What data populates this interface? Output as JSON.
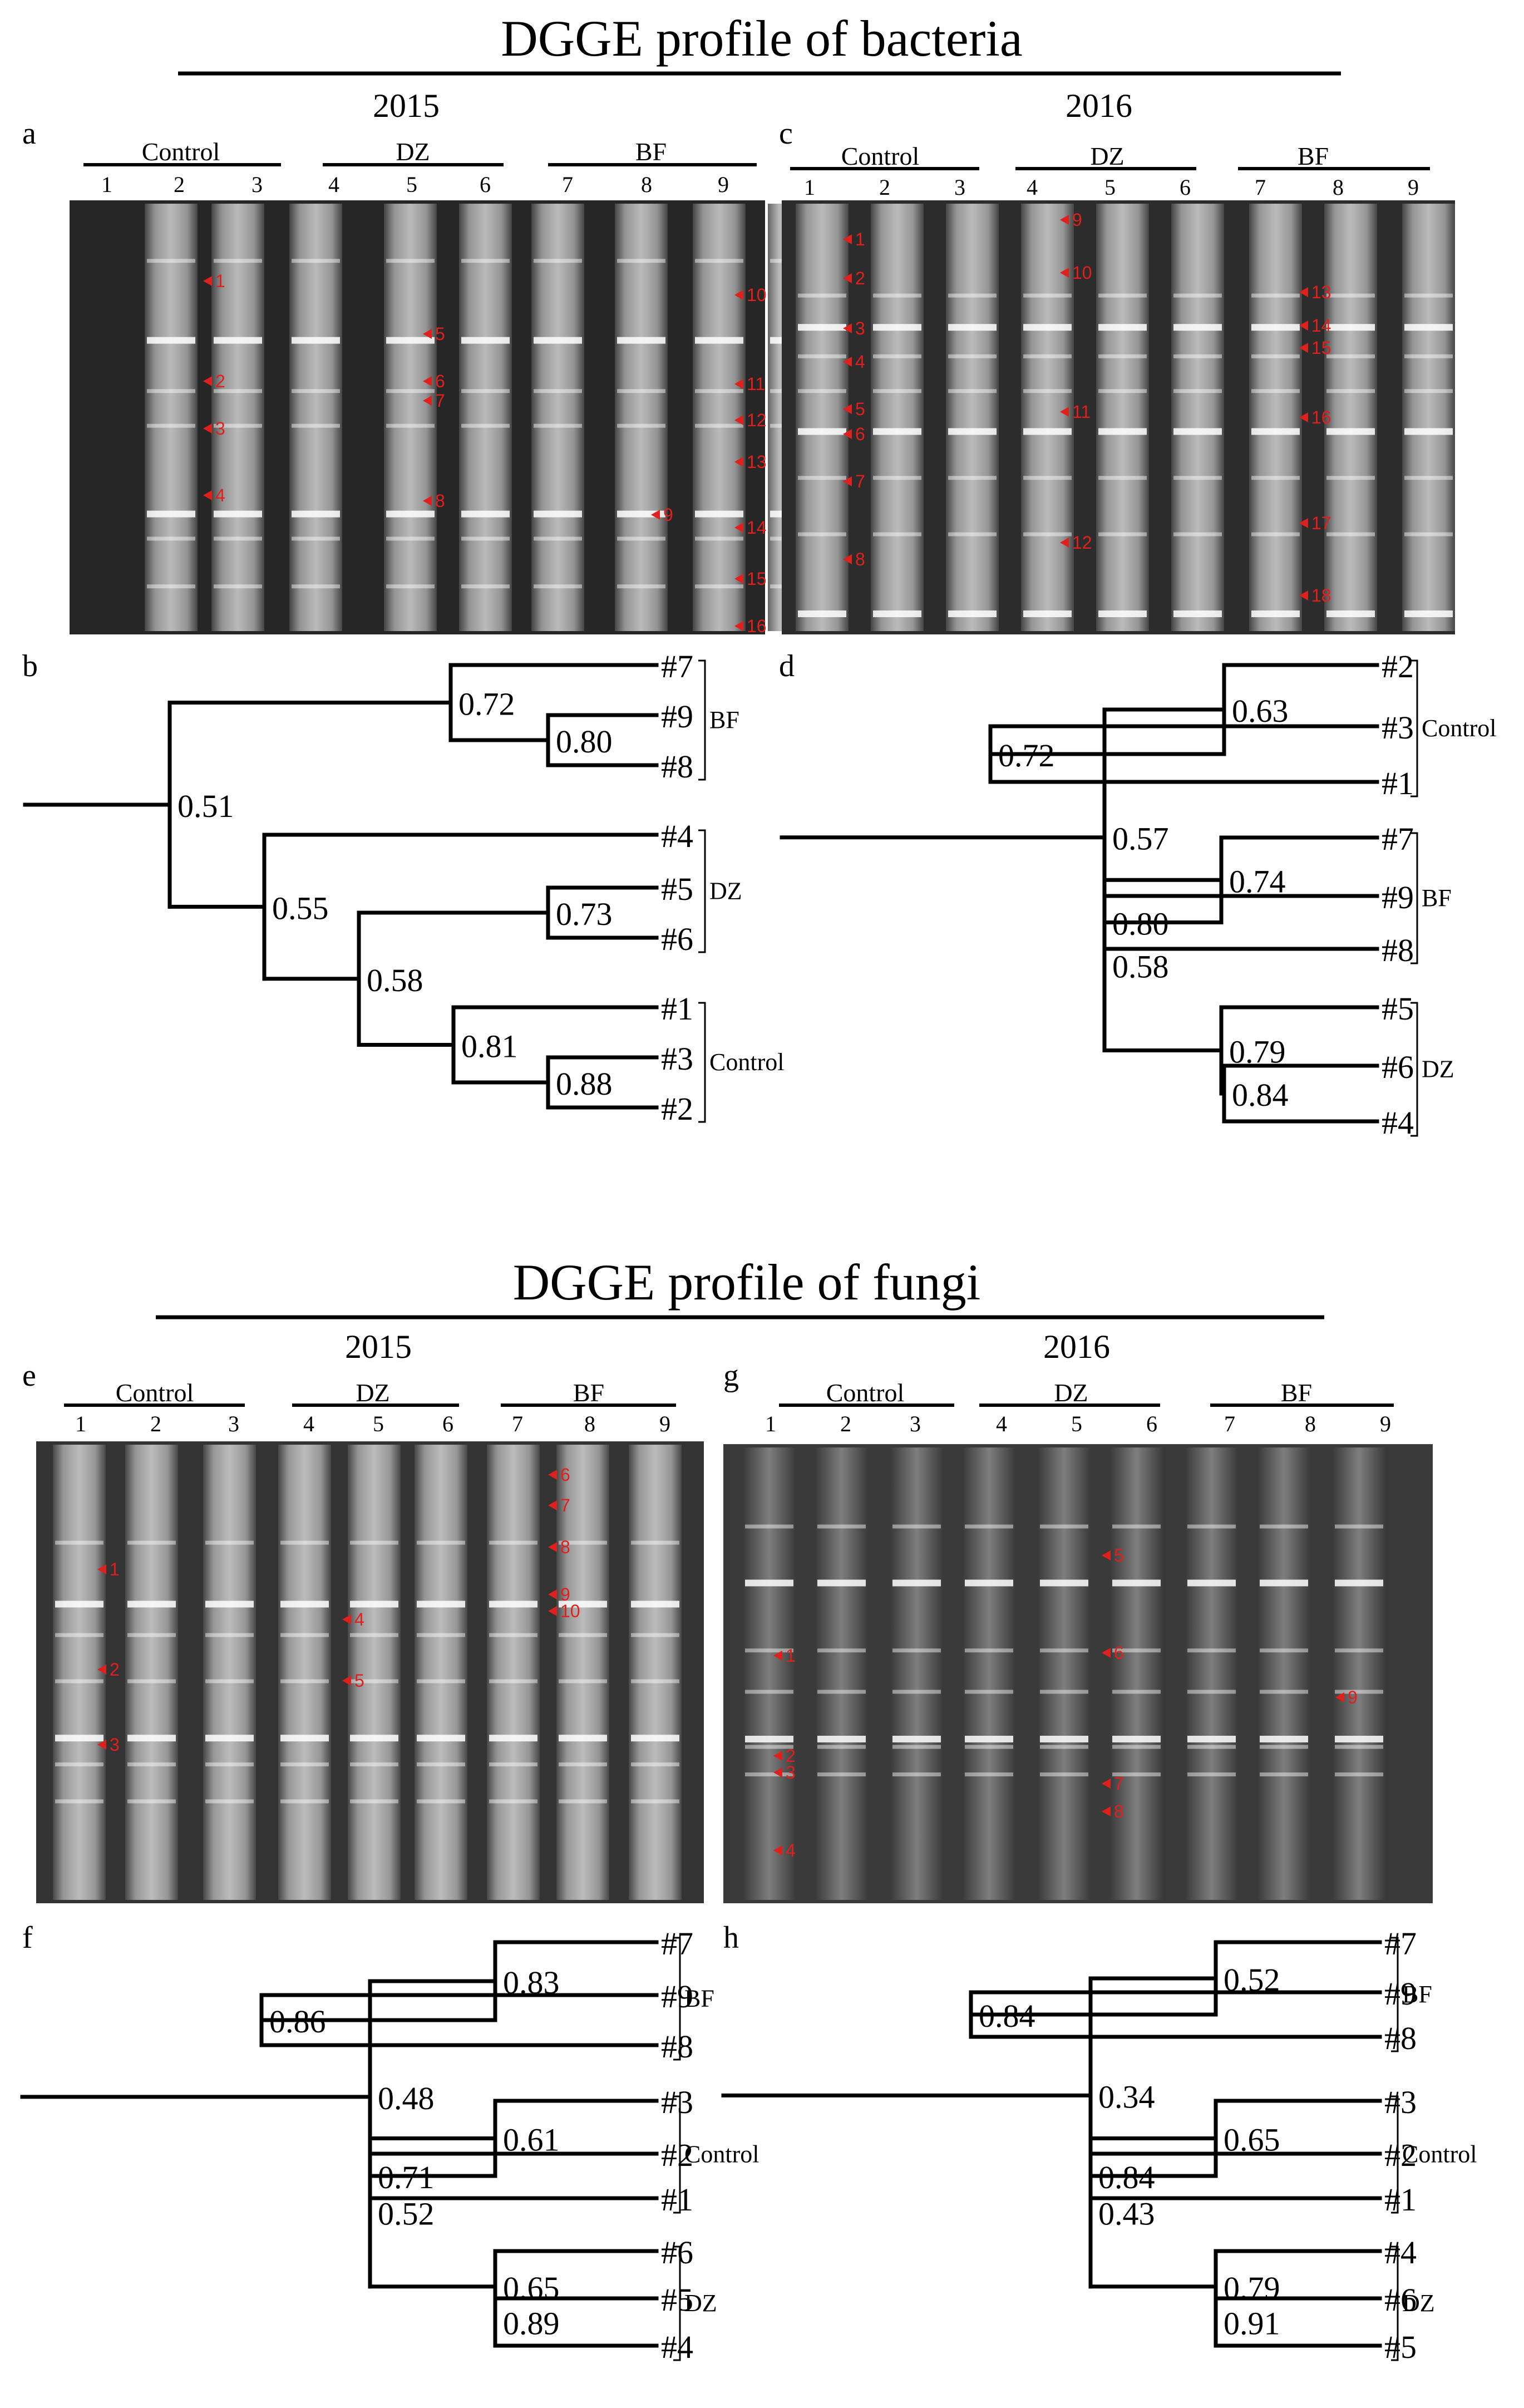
{
  "bacteria": {
    "title": "DGGE profile of bacteria",
    "panels": [
      {
        "letter": "a",
        "year": "2015",
        "groups": [
          {
            "name": "Control",
            "lanes": [
              "1",
              "2",
              "3"
            ]
          },
          {
            "name": "DZ",
            "lanes": [
              "4",
              "5",
              "6"
            ]
          },
          {
            "name": "BF",
            "lanes": [
              "7",
              "8",
              "9"
            ]
          }
        ],
        "bands": [
          "1",
          "2",
          "3",
          "4",
          "5",
          "6",
          "7",
          "8",
          "9",
          "10",
          "11",
          "12",
          "13",
          "14",
          "15",
          "16"
        ]
      },
      {
        "letter": "c",
        "year": "2016",
        "groups": [
          {
            "name": "Control",
            "lanes": [
              "1",
              "2",
              "3"
            ]
          },
          {
            "name": "DZ",
            "lanes": [
              "4",
              "5",
              "6"
            ]
          },
          {
            "name": "BF",
            "lanes": [
              "7",
              "8",
              "9"
            ]
          }
        ],
        "bands": [
          "1",
          "2",
          "3",
          "4",
          "5",
          "6",
          "7",
          "8",
          "9",
          "10",
          "11",
          "12",
          "13",
          "14",
          "15",
          "16",
          "17",
          "18"
        ]
      }
    ],
    "dendrograms": [
      {
        "letter": "b",
        "order": [
          "#7",
          "#9",
          "#8",
          "#4",
          "#5",
          "#6",
          "#1",
          "#3",
          "#2"
        ],
        "groups": [
          "BF",
          "DZ",
          "Control"
        ],
        "similarities": [
          "0.51",
          "0.72",
          "0.80",
          "0.55",
          "0.58",
          "0.73",
          "0.81",
          "0.88"
        ]
      },
      {
        "letter": "d",
        "order": [
          "#2",
          "#3",
          "#1",
          "#7",
          "#9",
          "#8",
          "#5",
          "#6",
          "#4"
        ],
        "groups": [
          "Control",
          "BF",
          "DZ"
        ],
        "similarities": [
          "0.57",
          "0.63",
          "0.72",
          "0.58",
          "0.74",
          "0.80",
          "0.79",
          "0.84"
        ]
      }
    ]
  },
  "fungi": {
    "title": "DGGE profile of fungi",
    "panels": [
      {
        "letter": "e",
        "year": "2015",
        "groups": [
          {
            "name": "Control",
            "lanes": [
              "1",
              "2",
              "3"
            ]
          },
          {
            "name": "DZ",
            "lanes": [
              "4",
              "5",
              "6"
            ]
          },
          {
            "name": "BF",
            "lanes": [
              "7",
              "8",
              "9"
            ]
          }
        ],
        "bands": [
          "1",
          "2",
          "3",
          "4",
          "5",
          "6",
          "7",
          "8",
          "9",
          "10"
        ]
      },
      {
        "letter": "g",
        "year": "2016",
        "groups": [
          {
            "name": "Control",
            "lanes": [
              "1",
              "2",
              "3"
            ]
          },
          {
            "name": "DZ",
            "lanes": [
              "4",
              "5",
              "6"
            ]
          },
          {
            "name": "BF",
            "lanes": [
              "7",
              "8",
              "9"
            ]
          }
        ],
        "bands": [
          "1",
          "2",
          "3",
          "4",
          "5",
          "6",
          "7",
          "8",
          "9"
        ]
      }
    ],
    "dendrograms": [
      {
        "letter": "f",
        "order": [
          "#7",
          "#9",
          "#8",
          "#3",
          "#2",
          "#1",
          "#6",
          "#5",
          "#4"
        ],
        "groups": [
          "BF",
          "Control",
          "DZ"
        ],
        "similarities": [
          "0.48",
          "0.83",
          "0.86",
          "0.52",
          "0.61",
          "0.71",
          "0.65",
          "0.89"
        ]
      },
      {
        "letter": "h",
        "order": [
          "#7",
          "#9",
          "#8",
          "#3",
          "#2",
          "#1",
          "#4",
          "#6",
          "#5"
        ],
        "groups": [
          "BF",
          "Control",
          "DZ"
        ],
        "similarities": [
          "0.34",
          "0.52",
          "0.84",
          "0.43",
          "0.65",
          "0.84",
          "0.79",
          "0.91"
        ]
      }
    ]
  },
  "colors": {
    "band_marker": "#e0201c",
    "gel_dark": "#2a2a2a",
    "gel_light": "#f2f2f2",
    "ink": "#000000"
  }
}
